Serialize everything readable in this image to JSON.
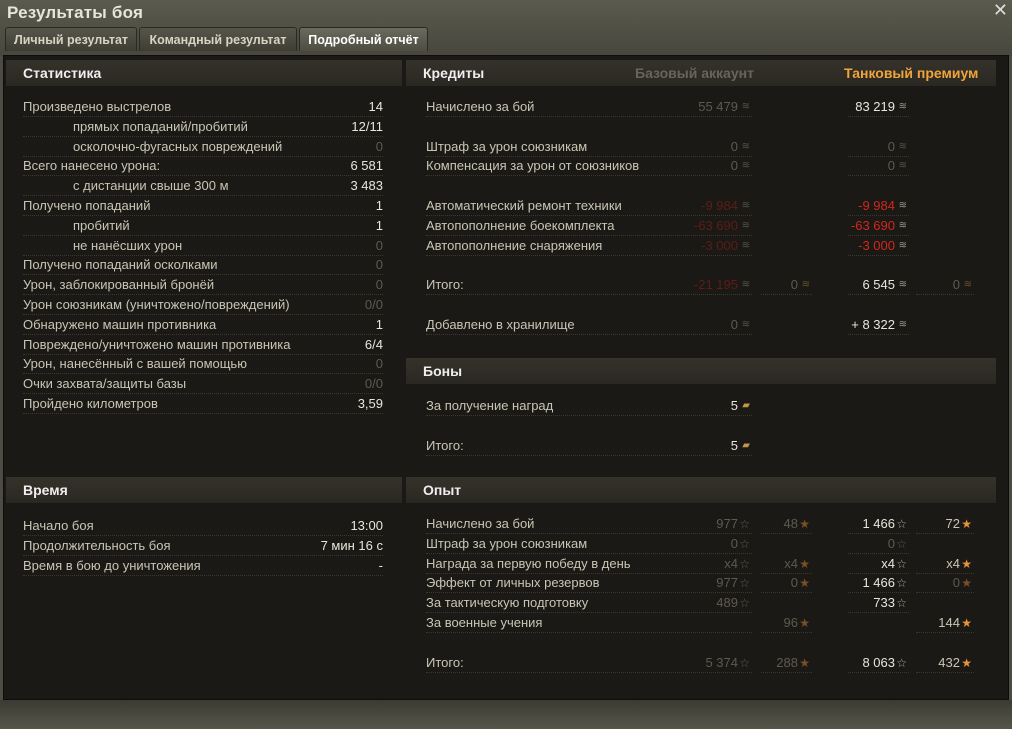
{
  "window": {
    "title": "Результаты боя",
    "close_icon": "close-icon"
  },
  "tabs": [
    {
      "label": "Личный результат",
      "active": false
    },
    {
      "label": "Командный результат",
      "active": false
    },
    {
      "label": "Подробный отчёт",
      "active": true
    }
  ],
  "statistics": {
    "title": "Статистика",
    "rows": [
      {
        "label": "Произведено выстрелов",
        "value": "14",
        "indent": false,
        "state": "active"
      },
      {
        "label": "прямых попаданий/пробитий",
        "value": "12/11",
        "indent": true,
        "state": "active"
      },
      {
        "label": "осколочно-фугасных повреждений",
        "value": "0",
        "indent": true,
        "state": "inactive"
      },
      {
        "label": "Всего нанесено урона:",
        "value": "6 581",
        "indent": false,
        "state": "active"
      },
      {
        "label": "с дистанции свыше 300 м",
        "value": "3 483",
        "indent": true,
        "state": "active"
      },
      {
        "label": "Получено попаданий",
        "value": "1",
        "indent": false,
        "state": "active"
      },
      {
        "label": "пробитий",
        "value": "1",
        "indent": true,
        "state": "active"
      },
      {
        "label": "не нанёсших урон",
        "value": "0",
        "indent": true,
        "state": "inactive"
      },
      {
        "label": "Получено попаданий осколками",
        "value": "0",
        "indent": false,
        "state": "inactive"
      },
      {
        "label": "Урон, заблокированный бронёй",
        "value": "0",
        "indent": false,
        "state": "inactive"
      },
      {
        "label": "Урон союзникам (уничтожено/повреждений)",
        "value": "0/0",
        "indent": false,
        "state": "inactive"
      },
      {
        "label": "Обнаружено машин противника",
        "value": "1",
        "indent": false,
        "state": "active"
      },
      {
        "label": "Повреждено/уничтожено машин противника",
        "value": "6/4",
        "indent": false,
        "state": "active"
      },
      {
        "label": "Урон, нанесённый с вашей помощью",
        "value": "0",
        "indent": false,
        "state": "inactive"
      },
      {
        "label": "Очки захвата/защиты базы",
        "value": "0/0",
        "indent": false,
        "state": "inactive"
      },
      {
        "label": "Пройдено километров",
        "value": "3,59",
        "indent": false,
        "state": "active"
      }
    ]
  },
  "time": {
    "title": "Время",
    "rows": [
      {
        "label": "Начало боя",
        "value": "13:00"
      },
      {
        "label": "Продолжительность боя",
        "value": "7 мин 16 с"
      },
      {
        "label": "Время в бою до уничтожения",
        "value": "-"
      }
    ]
  },
  "credits": {
    "title": "Кредиты",
    "base_label": "Базовый аккаунт",
    "premium_label": "Танковый премиум",
    "colors": {
      "premium": "#f0a43c",
      "base": "#67655b",
      "negative": "#d4261c"
    },
    "rows": [
      {
        "label": "Начислено за бой",
        "a": {
          "v": "55 479",
          "s": "dim",
          "i": "credit"
        },
        "c": {
          "v": "83 219",
          "s": "bright",
          "i": "credit"
        }
      },
      null,
      {
        "label": "Штраф за урон союзникам",
        "a": {
          "v": "0",
          "s": "dim",
          "i": "credit"
        },
        "c": {
          "v": "0",
          "s": "dim",
          "i": "credit"
        }
      },
      {
        "label": "Компенсация за урон от союзников",
        "a": {
          "v": "0",
          "s": "dim",
          "i": "credit"
        },
        "c": {
          "v": "0",
          "s": "dim",
          "i": "credit"
        }
      },
      null,
      {
        "label": "Автоматический ремонт техники",
        "a": {
          "v": "-9 984",
          "s": "dimred",
          "i": "credit"
        },
        "c": {
          "v": "-9 984",
          "s": "red",
          "i": "credit"
        }
      },
      {
        "label": "Автопополнение боекомплекта",
        "a": {
          "v": "-63 690",
          "s": "dimred",
          "i": "credit"
        },
        "c": {
          "v": "-63 690",
          "s": "red",
          "i": "credit"
        }
      },
      {
        "label": "Автопополнение снаряжения",
        "a": {
          "v": "-3 000",
          "s": "dimred",
          "i": "credit"
        },
        "c": {
          "v": "-3 000",
          "s": "red",
          "i": "credit"
        }
      },
      null,
      {
        "label": "Итого:",
        "a": {
          "v": "-21 195",
          "s": "dimred",
          "i": "credit"
        },
        "b": {
          "v": "0",
          "s": "dim",
          "i": "gold"
        },
        "c": {
          "v": "6 545",
          "s": "bright",
          "i": "credit"
        },
        "d": {
          "v": "0",
          "s": "dim",
          "i": "gold"
        }
      },
      null,
      {
        "label": "Добавлено в хранилище",
        "a": {
          "v": "0",
          "s": "dim",
          "i": "credit"
        },
        "c": {
          "v": "+ 8 322",
          "s": "bright",
          "i": "credit"
        }
      }
    ]
  },
  "bonds": {
    "title": "Боны",
    "rows": [
      {
        "label": "За получение наград",
        "a": {
          "v": "5",
          "s": "bright",
          "i": "bond"
        }
      },
      null,
      {
        "label": "Итого:",
        "a": {
          "v": "5",
          "s": "bright",
          "i": "bond"
        }
      }
    ]
  },
  "experience": {
    "title": "Опыт",
    "rows": [
      {
        "label": "Начислено за бой",
        "a": {
          "v": "977",
          "s": "dim",
          "i": "xp"
        },
        "b": {
          "v": "48",
          "s": "dim",
          "i": "freexp"
        },
        "c": {
          "v": "1 466",
          "s": "bright",
          "i": "xp"
        },
        "d": {
          "v": "72",
          "s": "",
          "i": "freexp"
        }
      },
      {
        "label": "Штраф за урон союзникам",
        "a": {
          "v": "0",
          "s": "dim",
          "i": "xp"
        },
        "c": {
          "v": "0",
          "s": "dim",
          "i": "xp"
        }
      },
      {
        "label": "Награда за первую победу в день",
        "a": {
          "v": "x4",
          "s": "dim",
          "i": "xp"
        },
        "b": {
          "v": "x4",
          "s": "dim",
          "i": "freexp"
        },
        "c": {
          "v": "x4",
          "s": "bright",
          "i": "xp"
        },
        "d": {
          "v": "x4",
          "s": "",
          "i": "freexp"
        }
      },
      {
        "label": "Эффект от личных резервов",
        "a": {
          "v": "977",
          "s": "dim",
          "i": "xp"
        },
        "b": {
          "v": "0",
          "s": "dim",
          "i": "freexp"
        },
        "c": {
          "v": "1 466",
          "s": "bright",
          "i": "xp"
        },
        "d": {
          "v": "0",
          "s": "dim",
          "i": "freexp"
        }
      },
      {
        "label": "За тактическую подготовку",
        "a": {
          "v": "489",
          "s": "dim",
          "i": "xp"
        },
        "c": {
          "v": "733",
          "s": "bright",
          "i": "xp"
        }
      },
      {
        "label": "За военные учения",
        "b": {
          "v": "96",
          "s": "dim",
          "i": "freexp"
        },
        "d": {
          "v": "144",
          "s": "",
          "i": "freexp"
        }
      },
      null,
      {
        "label": "Итого:",
        "a": {
          "v": "5 374",
          "s": "dim",
          "i": "xp"
        },
        "b": {
          "v": "288",
          "s": "dim",
          "i": "freexp"
        },
        "c": {
          "v": "8 063",
          "s": "bright",
          "i": "xp"
        },
        "d": {
          "v": "432",
          "s": "",
          "i": "freexp"
        }
      }
    ]
  }
}
